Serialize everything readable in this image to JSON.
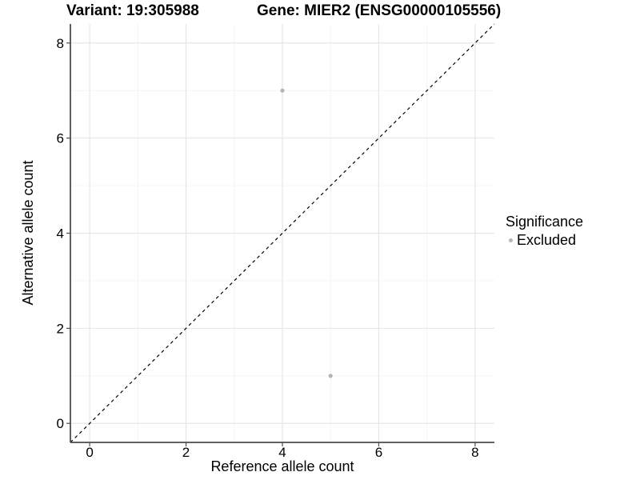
{
  "title": {
    "variant": "Variant: 19:305988",
    "gene": "Gene: MIER2 (ENSG00000105556)"
  },
  "chart_data": {
    "type": "scatter",
    "title": "Variant: 19:305988   Gene: MIER2 (ENSG00000105556)",
    "xlabel": "Reference allele count",
    "ylabel": "Alternative allele count",
    "xlim": [
      -0.4,
      8.4
    ],
    "ylim": [
      -0.4,
      8.4
    ],
    "x_major_ticks": [
      0,
      2,
      4,
      6,
      8
    ],
    "y_major_ticks": [
      0,
      2,
      4,
      6,
      8
    ],
    "x_minor_ticks": [
      1,
      3,
      5,
      7
    ],
    "y_minor_ticks": [
      1,
      3,
      5,
      7
    ],
    "grid": "on",
    "series": [
      {
        "name": "Excluded",
        "color": "#b5b5b5",
        "points": [
          [
            4,
            7
          ],
          [
            5,
            1
          ]
        ]
      }
    ],
    "reference_line": {
      "kind": "identity y=x",
      "from": [
        -0.4,
        -0.4
      ],
      "to": [
        8.4,
        8.4
      ],
      "style": "dashed",
      "color": "#000000"
    },
    "legend": {
      "position": "right",
      "title": "Significance",
      "entries": [
        {
          "label": "Excluded",
          "color": "#b5b5b5"
        }
      ]
    }
  },
  "colors": {
    "background": "#ffffff",
    "grid_major": "#e4e4e4",
    "grid_minor": "#efefef",
    "axis": "#4d4d4d",
    "tick_label": "#000000",
    "point": "#b5b5b5"
  }
}
